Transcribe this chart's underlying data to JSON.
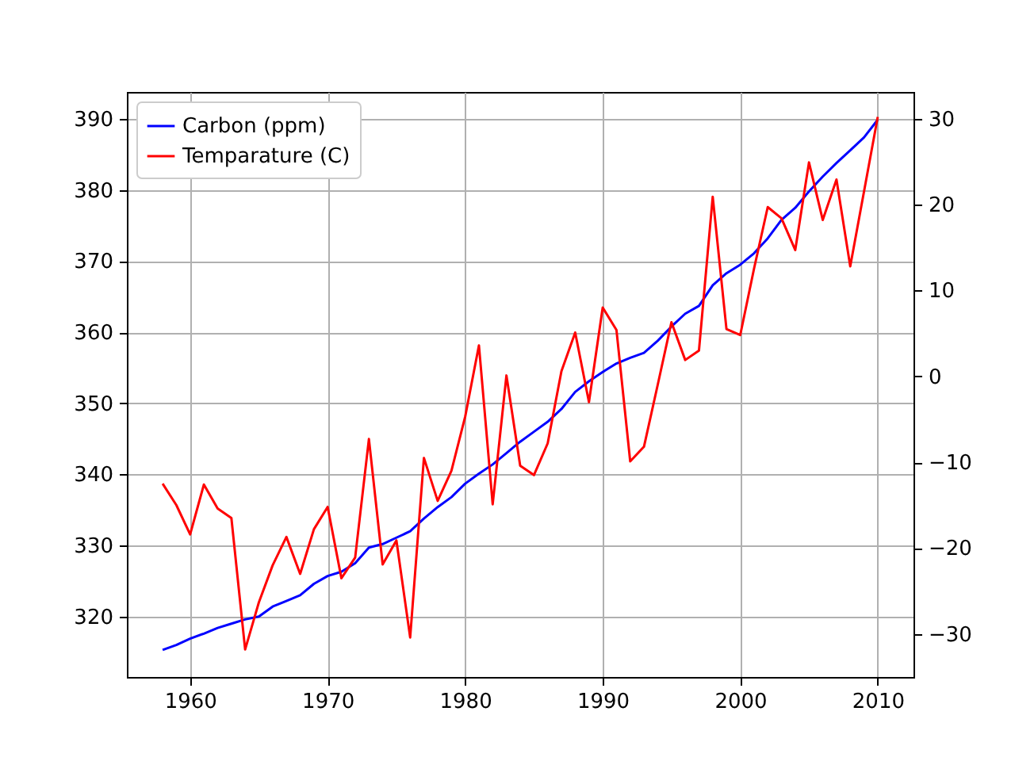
{
  "chart_data": {
    "type": "line",
    "x": [
      1958,
      1959,
      1960,
      1961,
      1962,
      1963,
      1964,
      1965,
      1966,
      1967,
      1968,
      1969,
      1970,
      1971,
      1972,
      1973,
      1974,
      1975,
      1976,
      1977,
      1978,
      1979,
      1980,
      1981,
      1982,
      1983,
      1984,
      1985,
      1986,
      1987,
      1988,
      1989,
      1990,
      1991,
      1992,
      1993,
      1994,
      1995,
      1996,
      1997,
      1998,
      1999,
      2000,
      2001,
      2002,
      2003,
      2004,
      2005,
      2006,
      2007,
      2008,
      2009,
      2010
    ],
    "series": [
      {
        "name": "Carbon (ppm)",
        "color": "#0000ff",
        "values": [
          315.3,
          316.0,
          316.9,
          317.6,
          318.4,
          319.0,
          319.6,
          320.0,
          321.4,
          322.2,
          323.0,
          324.6,
          325.7,
          326.3,
          327.5,
          329.7,
          330.2,
          331.1,
          332.0,
          333.8,
          335.4,
          336.8,
          338.7,
          340.1,
          341.4,
          343.0,
          344.6,
          346.0,
          347.4,
          349.2,
          351.6,
          353.1,
          354.4,
          355.6,
          356.4,
          357.1,
          358.8,
          360.8,
          362.6,
          363.7,
          366.6,
          368.3,
          369.5,
          371.1,
          373.2,
          375.8,
          377.5,
          379.8,
          381.9,
          383.8,
          385.6,
          387.4,
          389.9
        ]
      },
      {
        "name": "Temparature (C)",
        "color": "#ff0000",
        "axis": "y2",
        "values": [
          -12.5,
          -15.0,
          -18.4,
          -12.6,
          -15.4,
          -16.5,
          -31.8,
          -26.3,
          -22.0,
          -18.7,
          -23.0,
          -17.8,
          -15.2,
          -23.5,
          -21.1,
          -7.3,
          -21.9,
          -19.1,
          -30.4,
          -9.5,
          -14.5,
          -11.0,
          -4.7,
          3.6,
          -14.9,
          0.1,
          -10.4,
          -11.5,
          -7.8,
          0.6,
          5.1,
          -3.0,
          8.0,
          5.4,
          -9.9,
          -8.2,
          -1.0,
          6.3,
          1.9,
          3.0,
          20.9,
          5.5,
          4.8,
          12.5,
          19.7,
          18.4,
          14.7,
          24.9,
          18.2,
          22.9,
          12.8,
          21.5,
          30.2
        ]
      }
    ],
    "xlim": [
      1955.4,
      2012.6
    ],
    "xticks": [
      1960,
      1970,
      1980,
      1990,
      2000,
      2010
    ],
    "ylim": [
      311.5,
      393.8
    ],
    "yticks": [
      320,
      330,
      340,
      350,
      360,
      370,
      380,
      390
    ],
    "y2lim": [
      -35,
      33.1
    ],
    "y2ticks": [
      -30,
      -20,
      -10,
      0,
      10,
      20,
      30
    ],
    "grid": true,
    "legend": "top left"
  }
}
